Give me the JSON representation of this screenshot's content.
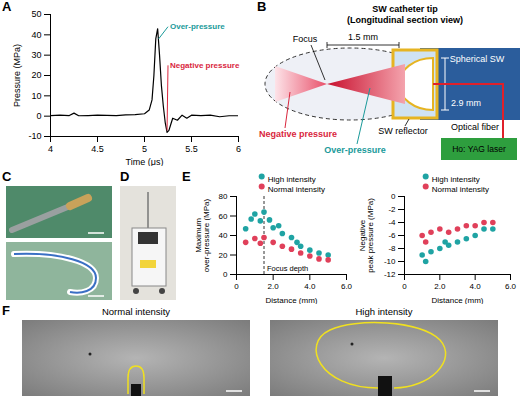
{
  "panel_letters": [
    "A",
    "B",
    "C",
    "D",
    "E",
    "F"
  ],
  "chart_data": [
    {
      "panel": "A",
      "type": "line",
      "xlabel": "Time (μs)",
      "ylabel": "Pressure (MPa)",
      "xlim": [
        4,
        6
      ],
      "xticks": [
        4,
        4.5,
        5,
        5.5,
        6
      ],
      "ylim": [
        -10,
        50
      ],
      "yticks": [
        -10,
        0,
        10,
        20,
        30,
        40,
        50
      ],
      "color": "#000000",
      "x": [
        4.0,
        4.1,
        4.2,
        4.25,
        4.3,
        4.4,
        4.5,
        4.6,
        4.7,
        4.8,
        4.9,
        5.0,
        5.05,
        5.08,
        5.1,
        5.12,
        5.14,
        5.16,
        5.18,
        5.2,
        5.22,
        5.24,
        5.26,
        5.28,
        5.3,
        5.35,
        5.4,
        5.45,
        5.5,
        5.6,
        5.7,
        5.8,
        5.9,
        6.0
      ],
      "values": [
        0.3,
        0.5,
        0.3,
        1.5,
        0.2,
        0.3,
        0.5,
        0.4,
        0.3,
        0.6,
        0.8,
        1.2,
        3,
        8,
        20,
        38,
        43,
        30,
        15,
        5,
        -3,
        -8,
        -7,
        -4,
        -1,
        -2,
        0.5,
        -1,
        0.5,
        0.3,
        0.5,
        -0.3,
        0.2,
        0.2
      ],
      "annotations": [
        {
          "text": "Over-pressure",
          "x": 5.25,
          "y": 44,
          "point_x": 5.15,
          "point_y": 38,
          "color": "#1a9a9a"
        },
        {
          "text": "Negative pressure",
          "x": 5.25,
          "y": 25,
          "point_x": 5.24,
          "point_y": -7,
          "color": "#d9263d"
        }
      ]
    },
    {
      "panel": "E",
      "type": "scatter",
      "xlabel": "Distance (mm)",
      "ylabel": "Maximum over-pressure (MPa)",
      "xlim": [
        0,
        6
      ],
      "xticks": [
        0,
        {
          "value": 2,
          "label": "2.0"
        },
        {
          "value": 4,
          "label": "4.0"
        },
        {
          "value": 6,
          "label": "6.0"
        }
      ],
      "ylim": [
        0,
        80
      ],
      "yticks": [
        0,
        20,
        40,
        60,
        80
      ],
      "legend": "top-right",
      "series": [
        {
          "name": "High intensity",
          "color": "#1fa3a3",
          "x": [
            0.5,
            0.8,
            1.0,
            1.3,
            1.5,
            1.8,
            2.0,
            2.3,
            2.5,
            3.0,
            3.3,
            3.5,
            4.0,
            4.5,
            5.0
          ],
          "values": [
            47,
            57,
            62,
            55,
            64,
            56,
            48,
            50,
            42,
            38,
            33,
            29,
            25,
            22,
            20
          ]
        },
        {
          "name": "Normal intensity",
          "color": "#e0405a",
          "x": [
            0.5,
            1.0,
            1.3,
            1.5,
            2.0,
            2.5,
            3.0,
            3.5,
            4.0,
            4.5,
            5.0
          ],
          "values": [
            33,
            37,
            32,
            38,
            33,
            29,
            26,
            22,
            19,
            16,
            15
          ]
        }
      ],
      "annotations": [
        {
          "text": "Focus depth",
          "x": 1.5,
          "line_style": "dashed"
        }
      ]
    },
    {
      "panel": "E",
      "type": "scatter",
      "xlabel": "Distance (mm)",
      "ylabel": "Negative peak pressure (MPa)",
      "xlim": [
        0,
        6
      ],
      "xticks": [
        0,
        {
          "value": 2,
          "label": "2.0"
        },
        {
          "value": 4,
          "label": "4.0"
        },
        {
          "value": 6,
          "label": "6.0"
        }
      ],
      "ylim": [
        -12,
        0
      ],
      "yticks": [
        -12,
        -10,
        -8,
        -6,
        -4,
        -2,
        0
      ],
      "legend": "top-right",
      "series": [
        {
          "name": "High intensity",
          "color": "#1fa3a3",
          "x": [
            1.0,
            1.2,
            1.5,
            2.0,
            2.3,
            2.5,
            3.0,
            3.5,
            4.0,
            4.5,
            5.0
          ],
          "values": [
            -9,
            -10,
            -8.5,
            -8,
            -7,
            -7.5,
            -7,
            -6.5,
            -6,
            -5,
            -5
          ]
        },
        {
          "name": "Normal intensity",
          "color": "#e0405a",
          "x": [
            1.0,
            1.2,
            1.5,
            2.0,
            2.5,
            3.0,
            3.5,
            4.0,
            4.5,
            5.0
          ],
          "values": [
            -6,
            -7,
            -5.5,
            -5,
            -5.5,
            -5,
            -4.5,
            -4.5,
            -4,
            -4
          ]
        }
      ]
    }
  ],
  "diagram": {
    "panel": "B",
    "title": "SW catheter tip",
    "subtitle": "(Longitudinal section view)",
    "labels": {
      "focus": "Focus",
      "focus_distance": "1.5 mm",
      "diameter": "2.9 mm",
      "wave": "Spherical SW",
      "reflector": "SW reflector",
      "over_pressure": "Over-pressure",
      "negative_pressure": "Negative pressure",
      "fiber": "Optical fiber",
      "laser": "Ho: YAG laser"
    }
  },
  "photos": {
    "panel": "F",
    "titles": [
      "Normal intensity",
      "High intensity"
    ]
  }
}
